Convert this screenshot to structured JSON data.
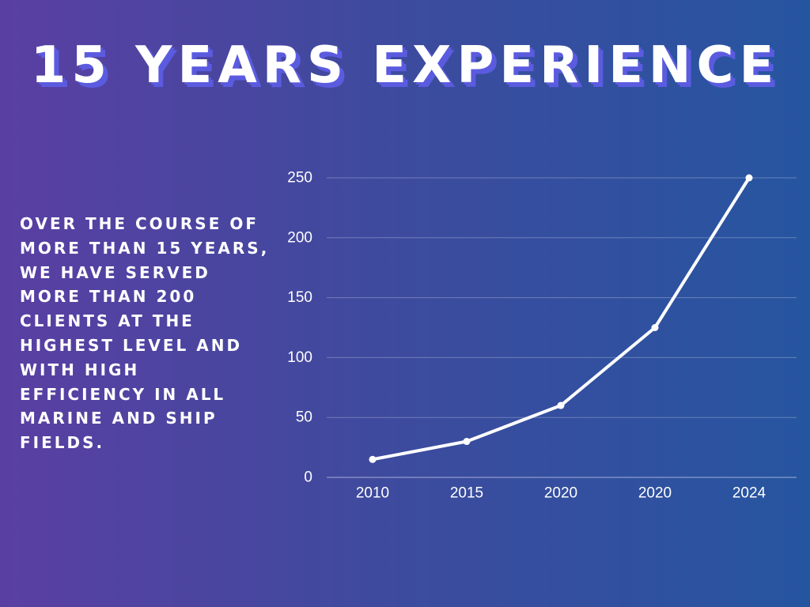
{
  "title": "15 YEARS EXPERIENCE",
  "description": "OVER THE COURSE OF MORE THAN 15 YEARS, WE HAVE SERVED MORE THAN 200 CLIENTS AT THE HIGHEST LEVEL AND WITH HIGH EFFICIENCY IN ALL MARINE AND SHIP FIELDS.",
  "colors": {
    "background_start": "#5a3fa3",
    "background_end": "#2655a0",
    "line": "#ffffff",
    "title_shadow": "#5b5be0"
  },
  "chart_data": {
    "type": "line",
    "categories": [
      "2010",
      "2015",
      "2020",
      "2020",
      "2024"
    ],
    "series": [
      {
        "values": [
          15,
          30,
          60,
          125,
          250
        ]
      }
    ],
    "ylim": [
      0,
      250
    ],
    "yticks": [
      0,
      50,
      100,
      150,
      200,
      250
    ],
    "grid": true,
    "legend": "none"
  }
}
